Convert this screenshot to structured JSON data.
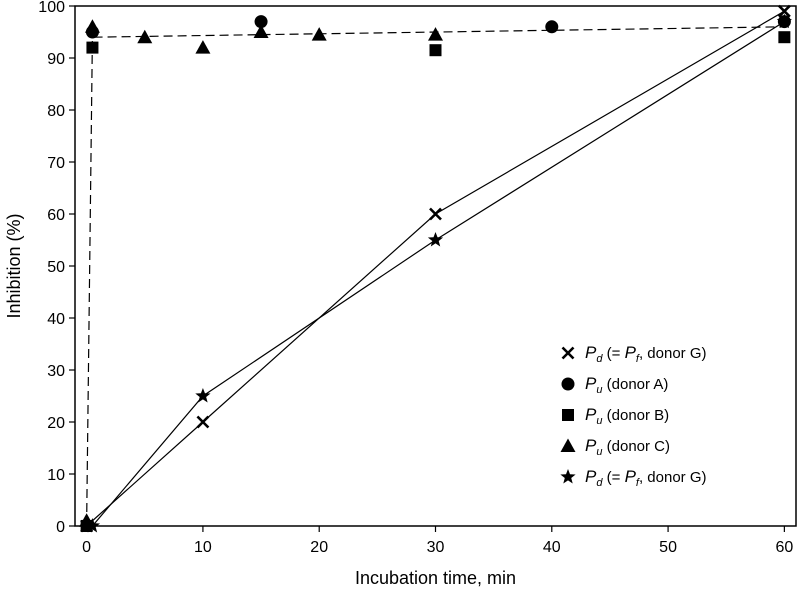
{
  "chart_data": {
    "type": "scatter",
    "xlabel": "Incubation time, min",
    "ylabel": "Inhibition (%)",
    "xlim": [
      -1,
      61
    ],
    "ylim": [
      0,
      100
    ],
    "xticks": [
      0,
      10,
      20,
      30,
      40,
      50,
      60
    ],
    "yticks": [
      0,
      10,
      20,
      30,
      40,
      50,
      60,
      70,
      80,
      90,
      100
    ],
    "legend_position": "bottom-right",
    "series": [
      {
        "id": "pd_x",
        "marker": "x",
        "legend": {
          "sym": "P",
          "sub": "d",
          "mid": " (= ",
          "sym2": "P",
          "sub2": "f",
          "tail": ", donor G)"
        },
        "points": [
          [
            0,
            0
          ],
          [
            10,
            20
          ],
          [
            30,
            60
          ],
          [
            60,
            99
          ]
        ],
        "line": "solid"
      },
      {
        "id": "pu_a",
        "marker": "circle",
        "legend": {
          "sym": "P",
          "sub": "u",
          "tail": " (donor A)"
        },
        "points": [
          [
            0.5,
            95
          ],
          [
            15,
            97
          ],
          [
            40,
            96
          ],
          [
            60,
            97
          ]
        ]
      },
      {
        "id": "pu_b",
        "marker": "square",
        "legend": {
          "sym": "P",
          "sub": "u",
          "tail": " (donor B)"
        },
        "points": [
          [
            0,
            0
          ],
          [
            0.5,
            92
          ],
          [
            30,
            91.5
          ],
          [
            60,
            94
          ]
        ]
      },
      {
        "id": "pu_c",
        "marker": "triangle",
        "legend": {
          "sym": "P",
          "sub": "u",
          "tail": " (donor C)"
        },
        "points": [
          [
            0,
            1
          ],
          [
            0.5,
            96
          ],
          [
            5,
            94
          ],
          [
            10,
            92
          ],
          [
            15,
            95
          ],
          [
            20,
            94.5
          ],
          [
            30,
            94.5
          ]
        ]
      },
      {
        "id": "pd_star",
        "marker": "star",
        "legend": {
          "sym": "P",
          "sub": "d",
          "mid": " (= ",
          "sym2": "P",
          "sub2": "f",
          "tail": ", donor G)"
        },
        "points": [
          [
            0.5,
            0
          ],
          [
            10,
            25
          ],
          [
            30,
            55
          ],
          [
            60,
            97
          ]
        ],
        "line": "solid"
      }
    ],
    "fit_line": {
      "style": "dashed",
      "points": [
        [
          0,
          0
        ],
        [
          0.5,
          94
        ],
        [
          60,
          96
        ]
      ]
    }
  }
}
